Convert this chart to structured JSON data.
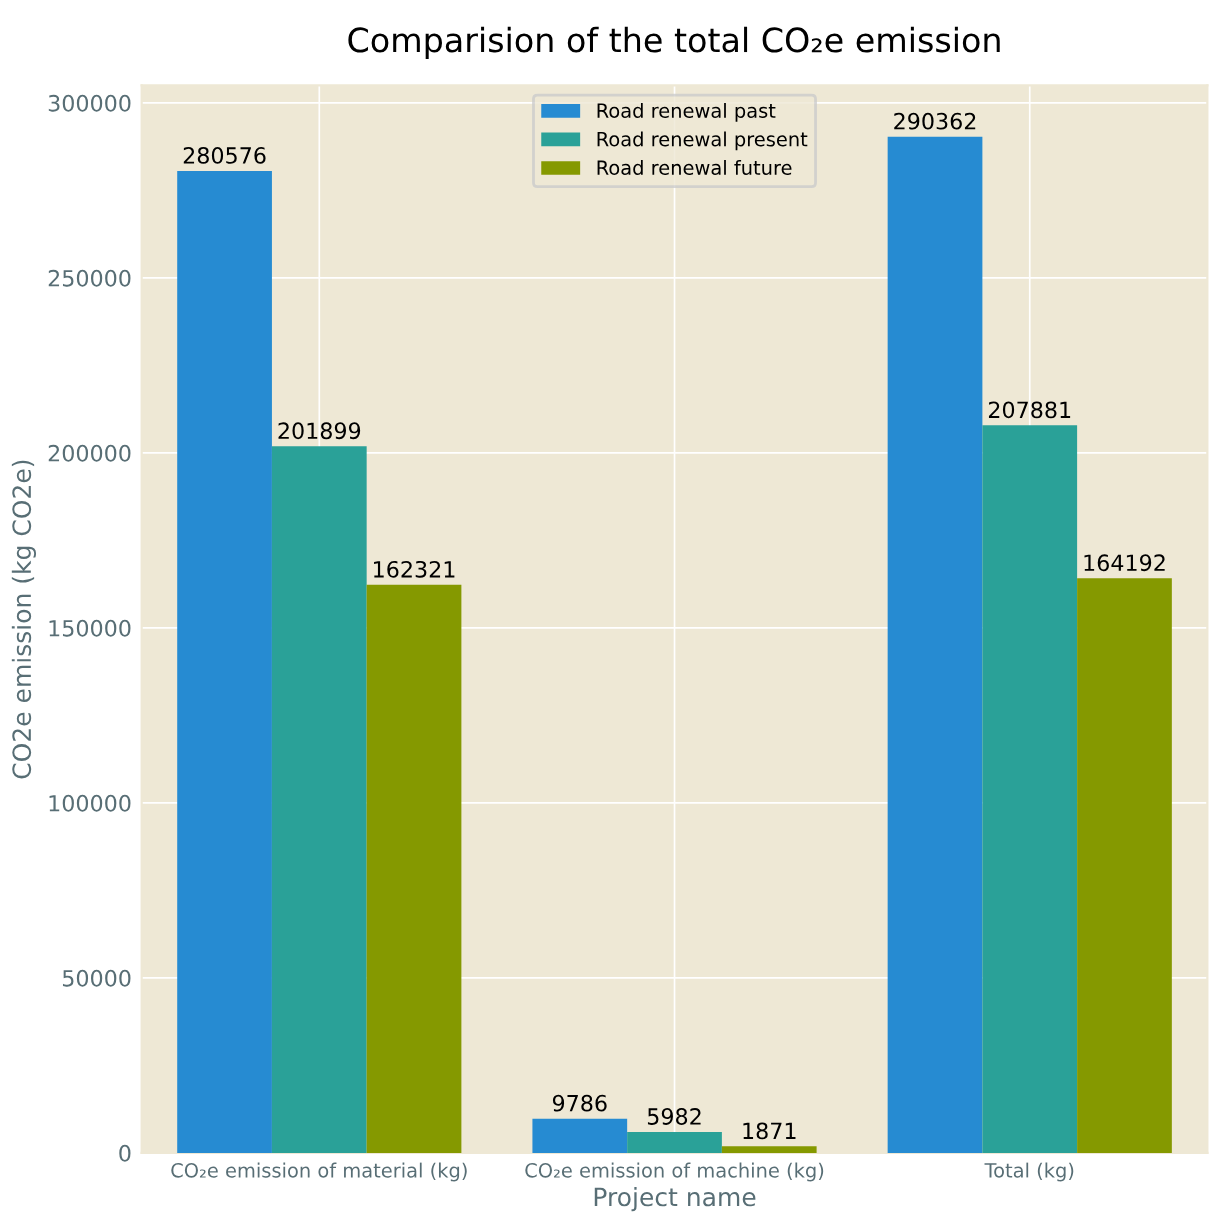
{
  "chart_data": {
    "type": "bar",
    "title": "Comparision of the total CO₂e emission",
    "xlabel": "Project name",
    "ylabel": "CO2e emission (kg CO2e)",
    "categories": [
      "CO₂e emission of material (kg)",
      "CO₂e emission of machine (kg)",
      "Total (kg)"
    ],
    "series": [
      {
        "name": "Road renewal past",
        "color": "#268bd2",
        "values": [
          280576,
          9786,
          290362
        ]
      },
      {
        "name": "Road renewal present",
        "color": "#2aa198",
        "values": [
          201899,
          5982,
          207881
        ]
      },
      {
        "name": "Road renewal future",
        "color": "#859900",
        "values": [
          162321,
          1871,
          164192
        ]
      }
    ],
    "ylim": [
      0,
      305000
    ],
    "yticks": [
      0,
      50000,
      100000,
      150000,
      200000,
      250000,
      300000
    ],
    "data_labels": true,
    "grid": true,
    "legend": "top"
  }
}
